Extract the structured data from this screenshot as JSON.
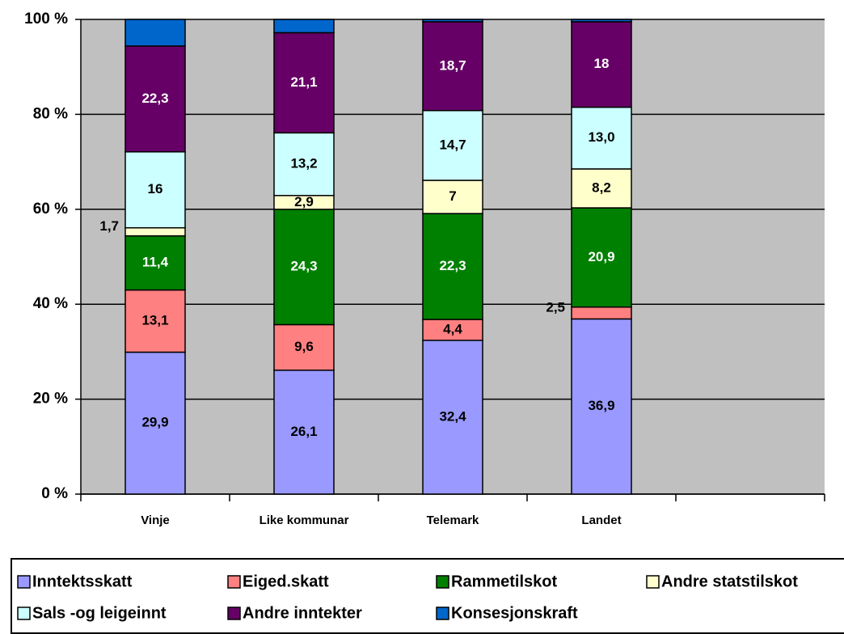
{
  "chart_data": {
    "type": "stacked_bar_percent",
    "categories": [
      "Vinje",
      "Like kommunar",
      "Telemark",
      "Landet",
      null
    ],
    "series": [
      {
        "name": "Inntektsskatt",
        "color": "#9999ff",
        "values": [
          29.9,
          26.1,
          32.4,
          36.9,
          null
        ],
        "value_labels": [
          "29,9",
          "26,1",
          "32,4",
          "36,9",
          null
        ]
      },
      {
        "name": "Eiged.skatt",
        "color": "#ff8080",
        "values": [
          13.1,
          9.6,
          4.4,
          2.5,
          null
        ],
        "value_labels": [
          "13,1",
          "9,6",
          "4,4",
          "2,5",
          null
        ]
      },
      {
        "name": "Rammetilskot",
        "color": "#008000",
        "values": [
          11.4,
          24.3,
          22.3,
          20.9,
          null
        ],
        "value_labels": [
          "11,4",
          "24,3",
          "22,3",
          "20,9",
          null
        ]
      },
      {
        "name": "Andre statstilskot",
        "color": "#ffffcc",
        "values": [
          1.7,
          2.9,
          7,
          8.2,
          null
        ],
        "value_labels": [
          "1,7",
          "2,9",
          "7",
          "8,2",
          null
        ]
      },
      {
        "name": "Sals -og leigeinnt",
        "color": "#ccffff",
        "values": [
          16,
          13.2,
          14.7,
          13.0,
          null
        ],
        "value_labels": [
          "16",
          "13,2",
          "14,7",
          "13,0",
          null
        ]
      },
      {
        "name": "Andre inntekter",
        "color": "#660066",
        "values": [
          22.3,
          21.1,
          18.7,
          18,
          null
        ],
        "value_labels": [
          "22,3",
          "21,1",
          "18,7",
          "18",
          null
        ]
      },
      {
        "name": "Konsesjonskraft",
        "color": "#0066cc",
        "values": [
          5.6,
          2.8,
          0.5,
          0.5,
          null
        ]
      }
    ],
    "ylim": [
      0,
      100
    ],
    "yticks": [
      {
        "value": 0,
        "label": "0 %"
      },
      {
        "value": 20,
        "label": "20 %"
      },
      {
        "value": 40,
        "label": "40 %"
      },
      {
        "value": 60,
        "label": "60 %"
      },
      {
        "value": 80,
        "label": "80 %"
      },
      {
        "value": 100,
        "label": "100 %"
      }
    ],
    "grid": true,
    "legend": "bottom",
    "plot_background": "#c0c0c0"
  }
}
